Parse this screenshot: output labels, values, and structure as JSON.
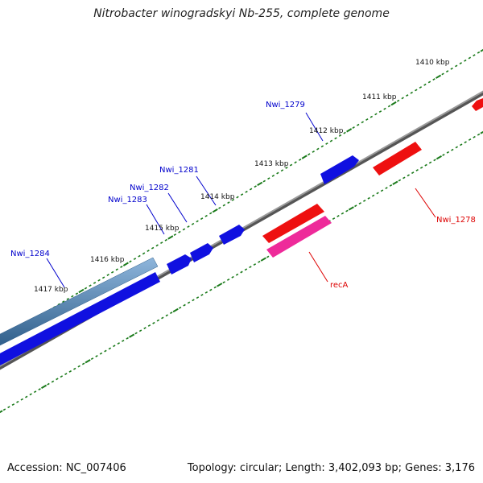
{
  "title": "Nitrobacter winogradskyi Nb-255, complete genome",
  "footer": {
    "accession": "Accession: NC_007406",
    "summary": "Topology: circular; Length: 3,402,093 bp; Genes: 3,176"
  },
  "colors": {
    "backbone": "#808080",
    "tick": "#1a7a1a",
    "forward_gene": "#1010e0",
    "reverse_gene": "#ee1010",
    "recA": "#ee2a9a",
    "steelblue_feature": "#4a7fb0",
    "forward_label": "#0000cc",
    "reverse_label": "#dd0000"
  },
  "kbp_labels": [
    "1410 kbp",
    "1411 kbp",
    "1412 kbp",
    "1413 kbp",
    "1414 kbp",
    "1415 kbp",
    "1416 kbp",
    "1417 kbp"
  ],
  "genes": {
    "forward": [
      "Nwi_1279",
      "Nwi_1281",
      "Nwi_1282",
      "Nwi_1283",
      "Nwi_1284"
    ],
    "reverse": [
      "Nwi_1278",
      "recA"
    ]
  }
}
